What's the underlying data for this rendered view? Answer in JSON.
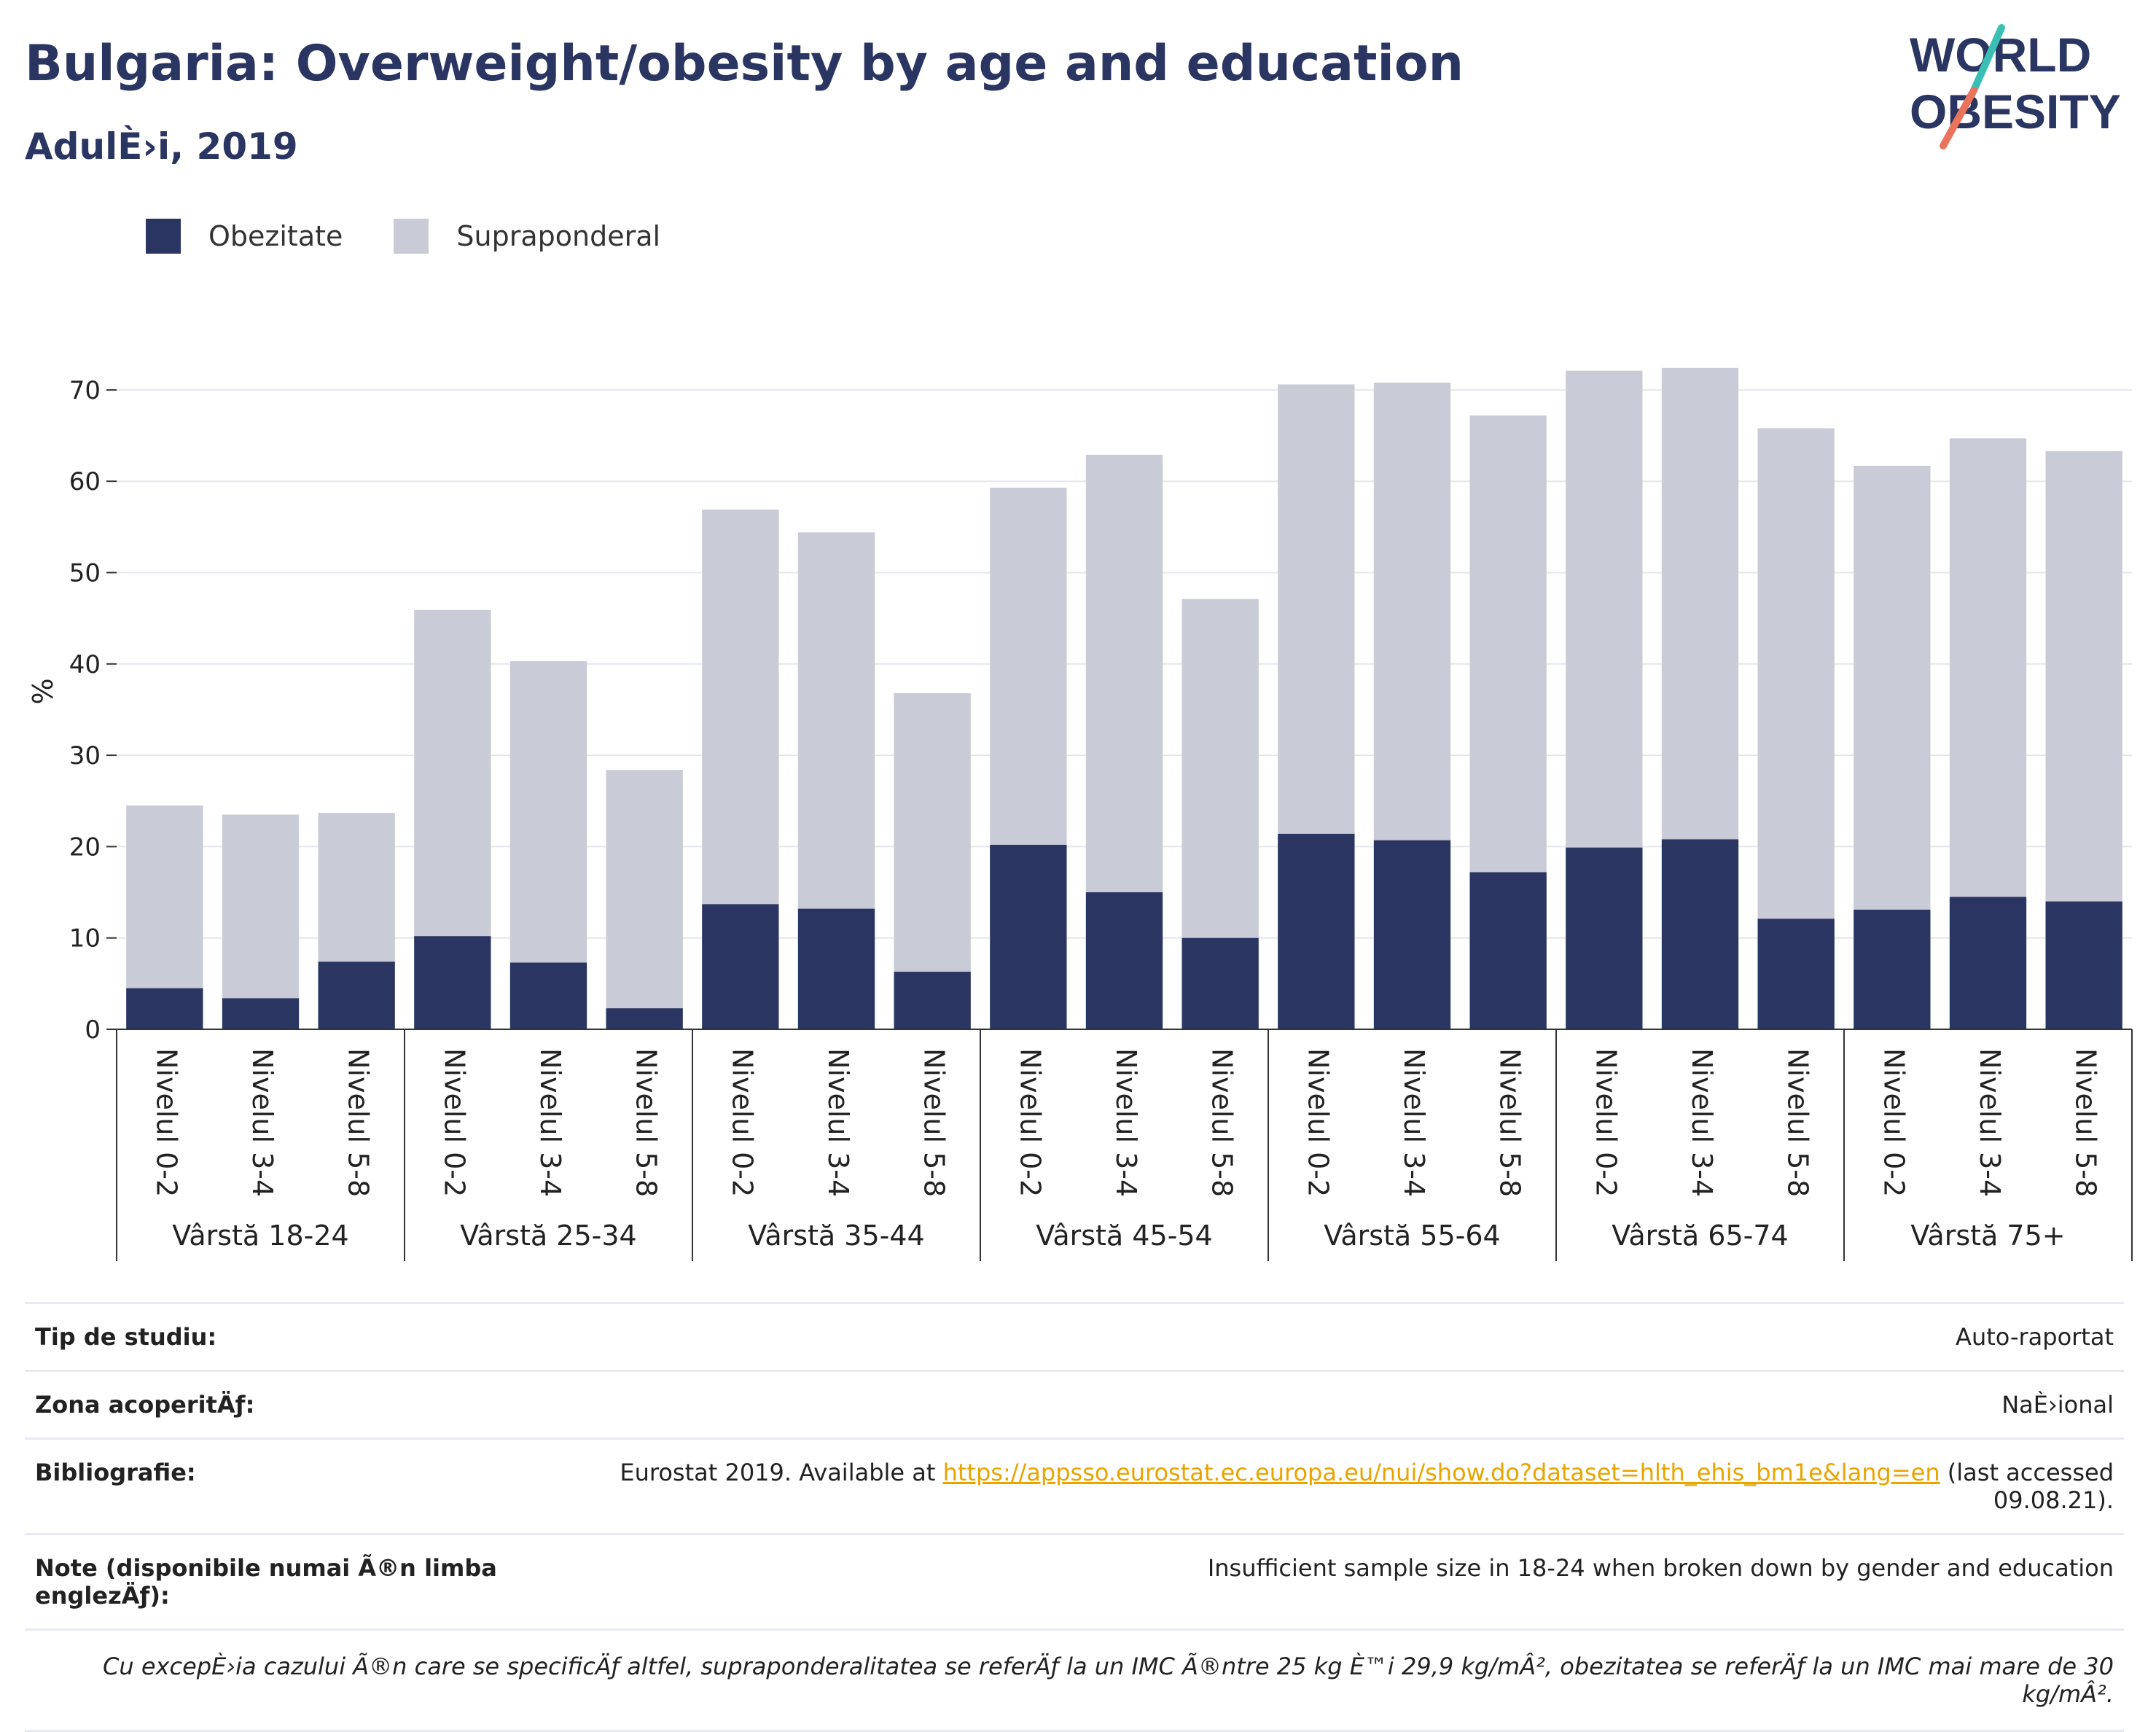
{
  "header": {
    "title": "Bulgaria: Overweight/obesity by age and education",
    "subtitle": "AdulÈ›i, 2019",
    "logo_line1": "WORLD",
    "logo_line2": "OBESITY"
  },
  "colors": {
    "obesity": "#2b3562",
    "overweight": "#c9cbd6",
    "title": "#2b3562",
    "grid": "#e6e7ee",
    "link": "#e9a400",
    "logo_teal": "#3bbfb4",
    "logo_coral": "#e9735b"
  },
  "legend": [
    {
      "label": "Obezitate",
      "color": "#2b3562"
    },
    {
      "label": "Supraponderal",
      "color": "#c9cbd6"
    }
  ],
  "chart_data": {
    "type": "bar",
    "stacked": true,
    "ylabel": "%",
    "ylim": [
      0,
      75
    ],
    "yticks": [
      0,
      10,
      20,
      30,
      40,
      50,
      60,
      70
    ],
    "grid": true,
    "legend_position": "top-left",
    "groups": [
      "Vârstă 18-24",
      "Vârstă 25-34",
      "Vârstă 35-44",
      "Vârstă 45-54",
      "Vârstă 55-64",
      "Vârstă 65-74",
      "Vârstă 75+"
    ],
    "sub_categories": [
      "Nivelul 0-2",
      "Nivelul 3-4",
      "Nivelul 5-8"
    ],
    "series": [
      {
        "name": "Obezitate",
        "values": [
          4.5,
          3.4,
          7.4,
          10.2,
          7.3,
          2.3,
          13.7,
          13.2,
          6.3,
          20.2,
          15.0,
          10.0,
          21.4,
          20.7,
          17.2,
          19.9,
          20.8,
          12.1,
          13.1,
          14.5,
          14.0
        ]
      },
      {
        "name": "Supraponderal",
        "values": [
          20.0,
          20.1,
          16.3,
          35.7,
          33.0,
          26.1,
          43.2,
          41.2,
          30.5,
          39.1,
          47.9,
          37.1,
          49.2,
          50.1,
          50.0,
          52.2,
          51.6,
          53.7,
          48.6,
          50.2,
          49.3
        ]
      }
    ],
    "totals": [
      24.5,
      23.5,
      23.7,
      45.9,
      40.3,
      28.4,
      56.9,
      54.4,
      36.8,
      59.3,
      62.9,
      47.1,
      70.6,
      70.8,
      67.2,
      72.1,
      72.4,
      65.8,
      61.7,
      64.7,
      63.3
    ]
  },
  "info": {
    "study_label": "Tip de studiu:",
    "study_value": "Auto-raportat",
    "coverage_label": "Zona acoperitÄƒ:",
    "coverage_value": "NaÈ›ional",
    "biblio_label": "Bibliografie:",
    "biblio_prefix": "Eurostat 2019. Available at ",
    "biblio_link": "https://appsso.eurostat.ec.europa.eu/nui/show.do?dataset=hlth_ehis_bm1e&lang=en",
    "biblio_suffix": " (last accessed 09.08.21).",
    "notes_label": "Note (disponibile numai Ã®n limba englezÄƒ):",
    "notes_value": "Insufficient sample size in 18-24 when broken down by gender and education",
    "footnote": "Cu excepÈ›ia cazului Ã®n care se specificÄƒ altfel, supraponderalitatea se referÄƒ la un IMC Ã®ntre 25 kg È™i 29,9 kg/mÂ², obezitatea se referÄƒ la un IMC mai mare de 30 kg/mÂ²."
  }
}
